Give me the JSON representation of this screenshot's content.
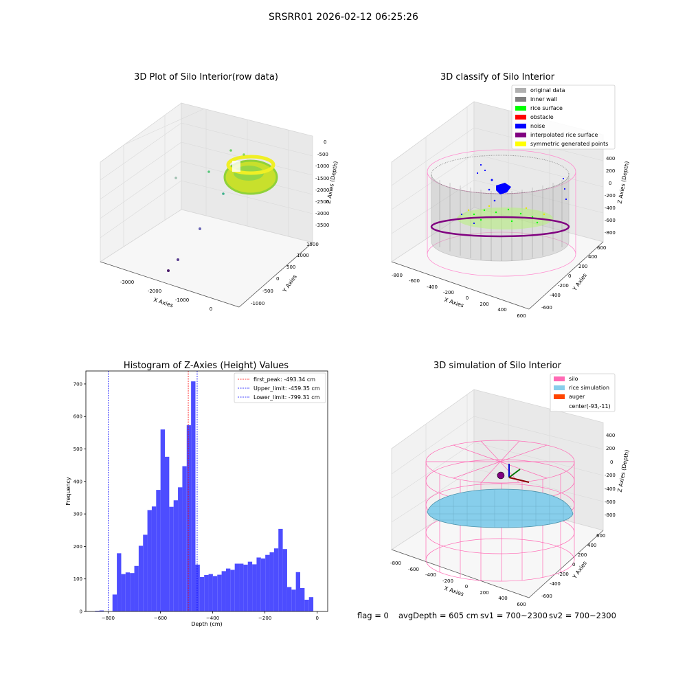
{
  "suptitle": "SRSRR01 2026-02-12 06:25:26",
  "footer": {
    "flag": "flag = 0",
    "avg": "avgDepth = 605 cm",
    "sv1": "sv1 = 700~2300",
    "sv2": "sv2 = 700~2300"
  },
  "colors": {
    "histogram_bar": "#4d4dff",
    "first_peak_line": "#ff0000",
    "limit_lines": "#0000ff",
    "silo_mesh": "#ff69b4",
    "rice_simulation": "#87ceeb",
    "auger": "#ff4500",
    "inner_wall": "#808080",
    "rice_surface": "#00ff00",
    "noise": "#0000ff",
    "interpolated_rice_surface": "#800080",
    "symmetric_generated_points": "#ffff00",
    "original_data": "#b0b0b0",
    "obstacle": "#ff0000"
  },
  "chart_data": [
    {
      "type": "scatter",
      "subtype": "3d",
      "title": "3D Plot of Silo Interior(row data)",
      "xlabel": "X Axies",
      "ylabel": "Y Axies",
      "zlabel": "Z Axies (Depth)",
      "xticks": [
        "-3000",
        "-2000",
        "-1000",
        "0"
      ],
      "yticks": [
        "-1000",
        "-500",
        "0",
        "500",
        "1000",
        "1500"
      ],
      "zticks": [
        "0",
        "-500",
        "-1000",
        "-1500",
        "-2000",
        "-2500",
        "-3000",
        "-3500"
      ],
      "grid": true
    },
    {
      "type": "scatter",
      "subtype": "3d",
      "title": "3D classify of Silo Interior",
      "xlabel": "X Axies",
      "ylabel": "Y Axies",
      "zlabel": "Z Axies (Depth)",
      "xticks": [
        "-800",
        "-600",
        "-400",
        "-200",
        "0",
        "200",
        "400",
        "600"
      ],
      "yticks": [
        "-600",
        "-400",
        "-200",
        "0",
        "200",
        "400",
        "600"
      ],
      "zticks": [
        "400",
        "200",
        "0",
        "-200",
        "-400",
        "-600",
        "-800"
      ],
      "legend_position": "top-right",
      "legend": [
        "original data",
        "inner wall",
        "rice surface",
        "obstacle",
        "noise",
        "interpolated rice surface",
        "symmetric generated points"
      ],
      "grid": true
    },
    {
      "type": "bar",
      "subtype": "histogram",
      "title": "Histogram of Z-Axies (Height) Values",
      "xlabel": "Depth (cm)",
      "ylabel": "Frequency",
      "xlim": [
        -885,
        40
      ],
      "ylim": [
        0,
        740
      ],
      "xticks": [
        -800,
        -600,
        -400,
        -200,
        0
      ],
      "yticks": [
        0,
        100,
        200,
        300,
        400,
        500,
        600,
        700
      ],
      "bin_start": -850,
      "bin_width": 16.7,
      "values": [
        2,
        3,
        0,
        0,
        52,
        179,
        115,
        120,
        118,
        140,
        202,
        236,
        312,
        323,
        374,
        560,
        476,
        322,
        342,
        382,
        447,
        573,
        708,
        144,
        106,
        112,
        115,
        109,
        113,
        124,
        132,
        128,
        147,
        147,
        144,
        153,
        145,
        166,
        163,
        174,
        182,
        194,
        254,
        192,
        75,
        67,
        121,
        72,
        36,
        44
      ],
      "lines": [
        {
          "label": "first_peak: -493.34 cm",
          "x": -493.34,
          "color": "#ff0000"
        },
        {
          "label": "Upper_limit: -459.35 cm",
          "x": -459.35,
          "color": "#0000ff"
        },
        {
          "label": "Lower_limit: -799.31 cm",
          "x": -799.31,
          "color": "#0000ff"
        }
      ],
      "legend_position": "top-right",
      "grid": false
    },
    {
      "type": "area",
      "subtype": "3d-surface",
      "title": "3D simulation of Silo Interior",
      "xlabel": "X Axies",
      "ylabel": "Y Axies",
      "zlabel": "Z Axies (Depth)",
      "xticks": [
        "-800",
        "-600",
        "-400",
        "-200",
        "0",
        "200",
        "400",
        "600"
      ],
      "yticks": [
        "-600",
        "-400",
        "-200",
        "0",
        "200",
        "400",
        "600"
      ],
      "zticks": [
        "400",
        "200",
        "0",
        "-200",
        "-400",
        "-600",
        "-800"
      ],
      "legend_position": "top-right",
      "legend": [
        "silo",
        "rice simulation",
        "auger",
        "center(-93,-11)"
      ],
      "grid": true
    }
  ]
}
